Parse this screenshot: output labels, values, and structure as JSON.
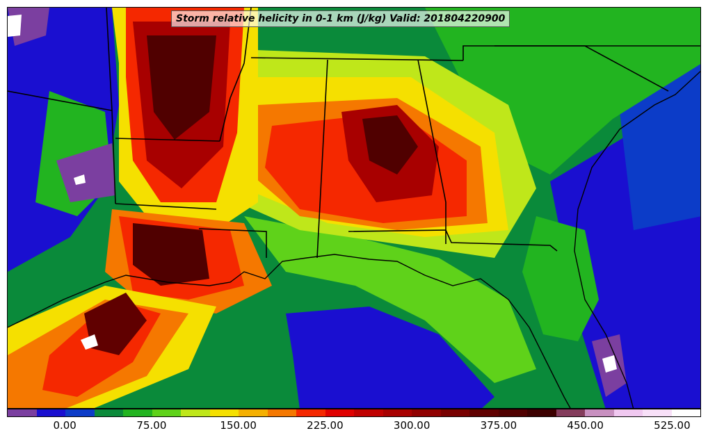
{
  "title": "Storm relative helicity in 0-1 km (J/kg) Valid: 201804220900",
  "colorbar": {
    "colors": [
      "#7b3fa0",
      "#1a0fd0",
      "#0c3cc8",
      "#0a8a3a",
      "#22b420",
      "#5fd21a",
      "#bfe71a",
      "#f5e000",
      "#f5b000",
      "#f57800",
      "#f52800",
      "#e00000",
      "#c00000",
      "#a80000",
      "#900000",
      "#780000",
      "#600000",
      "#500000",
      "#3c0000",
      "#843c5c",
      "#c890c0",
      "#f0c8f0",
      "#f8e0f8",
      "#ffffff"
    ],
    "tick_labels": [
      "0.00",
      "75.00",
      "150.00",
      "225.00",
      "300.00",
      "375.00",
      "450.00",
      "525.00"
    ]
  },
  "palette": {
    "purple": "#7b3fa0",
    "blue": "#1a0fd0",
    "blue2": "#0c3cc8",
    "green_dark": "#0a8a3a",
    "green": "#22b420",
    "green_light": "#5fd21a",
    "yellow_green": "#bfe71a",
    "yellow": "#f5e000",
    "orange": "#f57800",
    "red": "#f52800",
    "dark_red": "#a80000",
    "maroon": "#500000",
    "white": "#ffffff"
  }
}
